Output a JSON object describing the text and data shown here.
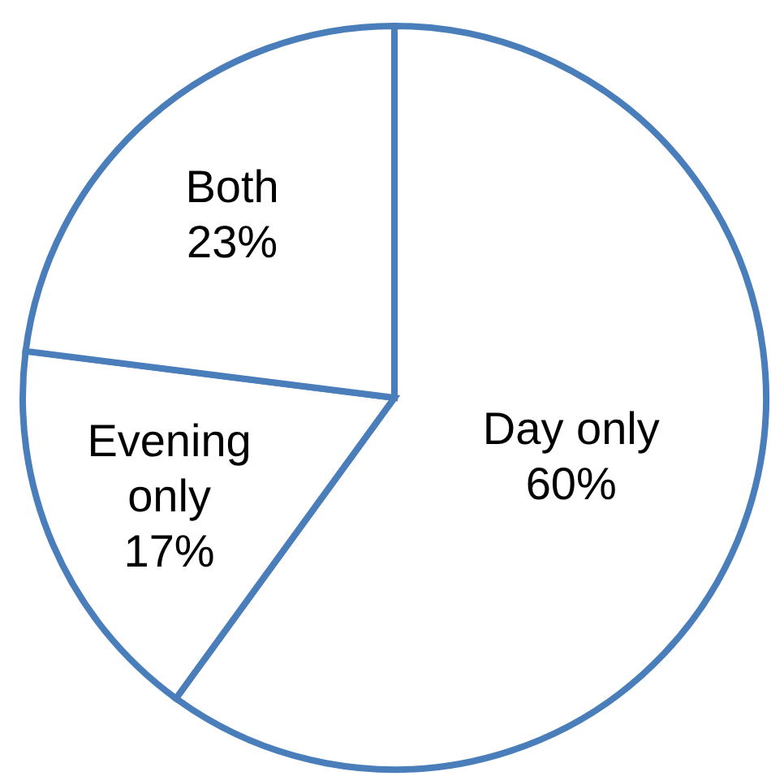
{
  "chart_data": {
    "type": "pie",
    "categories": [
      "Day only",
      "Evening only",
      "Both"
    ],
    "values": [
      60,
      17,
      23
    ],
    "colors": [
      "#ffffff",
      "#ffffff",
      "#ffffff"
    ],
    "value_labels": [
      "60%",
      "17%",
      "23%"
    ],
    "legend": false
  }
}
